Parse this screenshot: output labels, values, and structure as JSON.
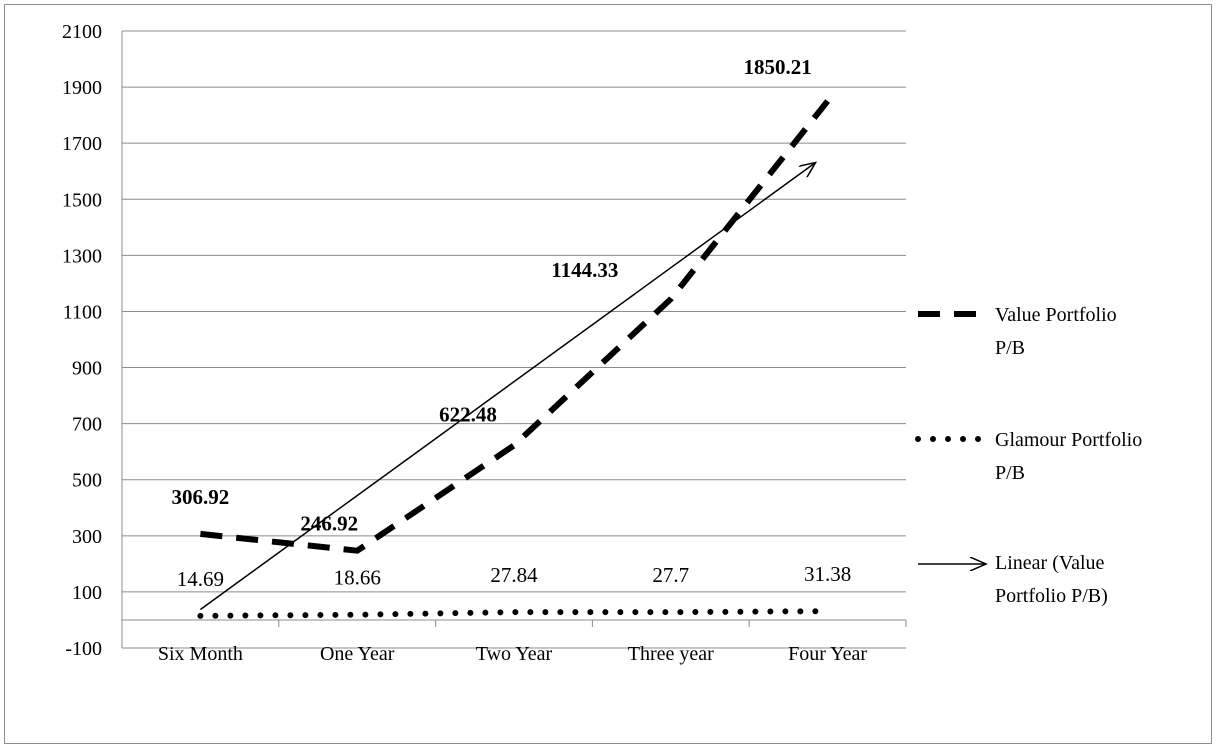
{
  "chart_data": {
    "type": "line",
    "categories": [
      "Six Month",
      "One Year",
      "Two Year",
      "Three year",
      "Four Year"
    ],
    "ylim": [
      -100,
      2100
    ],
    "ytick_step": 200,
    "grid": "horizontal",
    "legend_position": "right",
    "series": [
      {
        "name": "Value Portfolio P/B",
        "values": [
          306.92,
          246.92,
          622.48,
          1144.33,
          1850.21
        ],
        "labels": [
          "306.92",
          "246.92",
          "622.48",
          "1144.33",
          "1850.21"
        ],
        "style": "dashed",
        "label_bold": true
      },
      {
        "name": "Glamour Portfolio P/B",
        "values": [
          14.69,
          18.66,
          27.84,
          27.7,
          31.38
        ],
        "labels": [
          "14.69",
          "18.66",
          "27.84",
          "27.7",
          "31.38"
        ],
        "style": "dotted",
        "label_bold": false
      }
    ],
    "trendline": {
      "name": "Linear (Value Portfolio P/B)",
      "of_series": "Value Portfolio P/B",
      "type": "linear"
    }
  }
}
